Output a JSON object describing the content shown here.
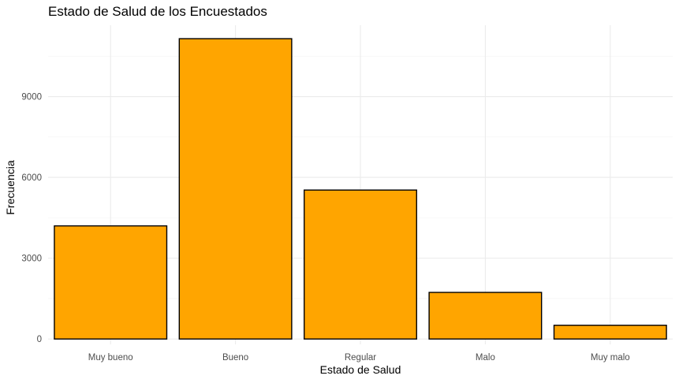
{
  "chart_data": {
    "type": "bar",
    "title": "Estado de Salud de los Encuestados",
    "xlabel": "Estado de Salud",
    "ylabel": "Frecuencia",
    "categories": [
      "Muy bueno",
      "Bueno",
      "Regular",
      "Malo",
      "Muy malo"
    ],
    "values": [
      4200,
      11150,
      5530,
      1730,
      510
    ],
    "yticks": [
      0,
      3000,
      6000,
      9000
    ],
    "ylim": [
      -200,
      11650
    ],
    "grid": true,
    "bar_fill": "#FFA500",
    "bar_outline": "#000000",
    "gridline_color": "#EBEBEB"
  }
}
